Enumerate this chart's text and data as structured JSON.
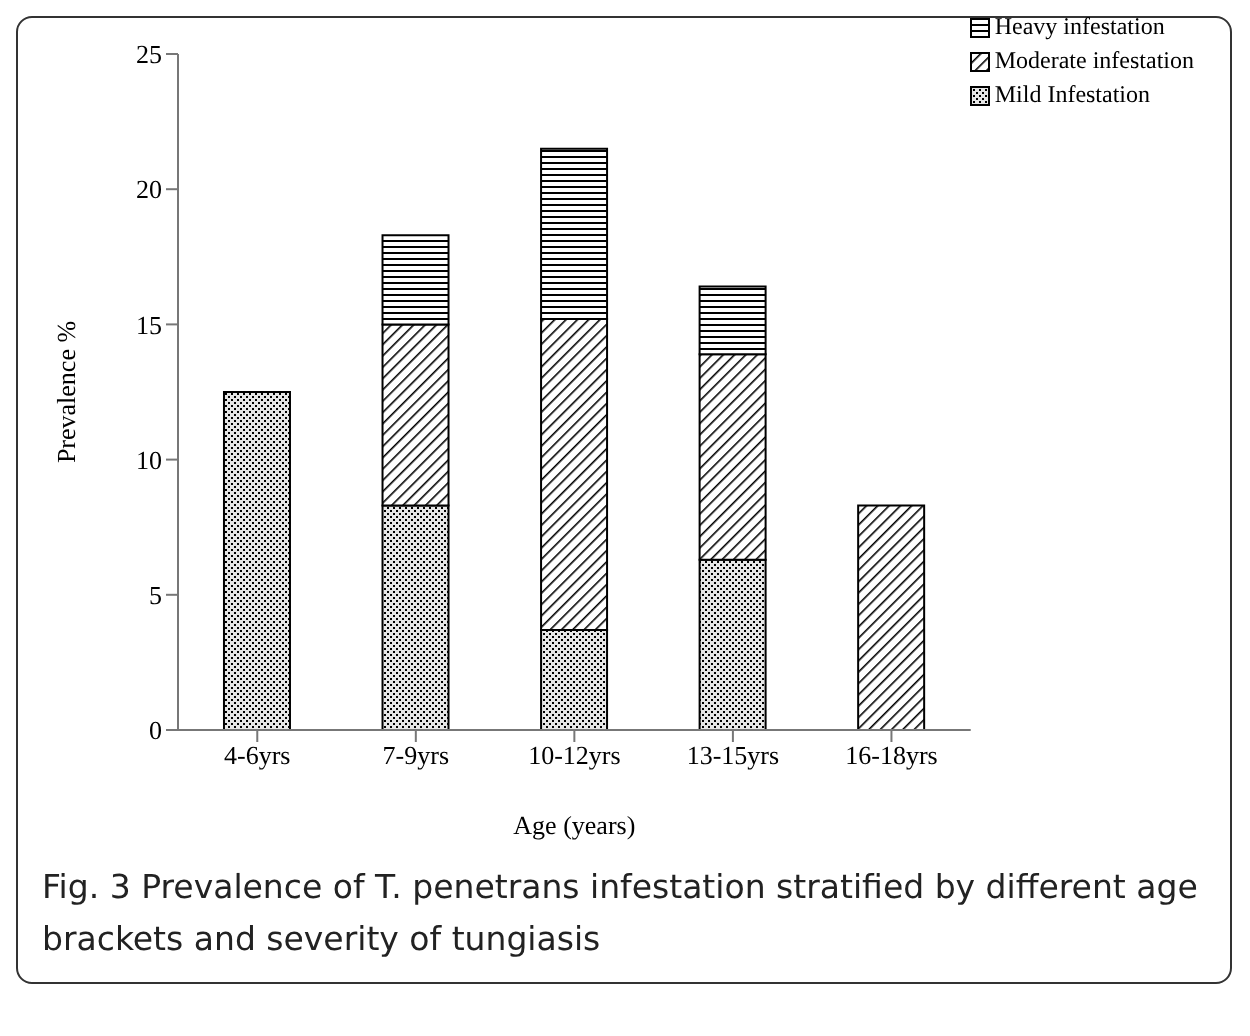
{
  "chart_data": {
    "type": "bar",
    "stacked": true,
    "xlabel": "Age (years)",
    "ylabel": "Prevalence %",
    "categories": [
      "4-6yrs",
      "7-9yrs",
      "10-12yrs",
      "13-15yrs",
      "16-18yrs"
    ],
    "series": [
      {
        "name": "Mild Infestation",
        "color": "#000000",
        "values": [
          12.5,
          8.3,
          3.7,
          6.3,
          0
        ]
      },
      {
        "name": "Moderate infestation",
        "color": "#000000",
        "values": [
          0,
          6.7,
          11.5,
          7.6,
          8.3
        ]
      },
      {
        "name": "Heavy infestation",
        "color": "#000000",
        "values": [
          0,
          3.3,
          6.3,
          2.5,
          0
        ]
      }
    ],
    "ylim": [
      0,
      25
    ],
    "yticks": [
      0,
      5,
      10,
      15,
      20,
      25
    ],
    "grid": false,
    "legend": "top right",
    "annotations": [
      "Fig. 3 Prevalence of T. penetrans infestation stratified by different age brackets and severity of tungiasis"
    ]
  }
}
